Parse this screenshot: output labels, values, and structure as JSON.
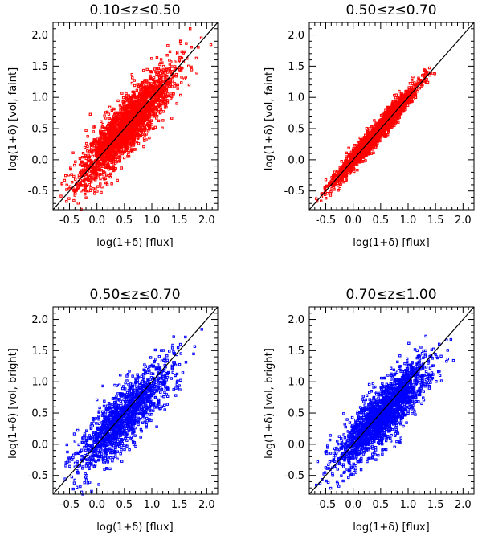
{
  "chart_data": [
    {
      "type": "scatter",
      "title": "0.10≤z≤0.50",
      "xlabel": "log(1+δ) [flux]",
      "ylabel": "log(1+δ) [vol, faint]",
      "xlim": [
        -0.8,
        2.2
      ],
      "ylim": [
        -0.8,
        2.2
      ],
      "xticks": [
        "-0.5",
        "0.0",
        "0.5",
        "1.0",
        "1.5",
        "2.0"
      ],
      "yticks": [
        "-0.5",
        "0.0",
        "0.5",
        "1.0",
        "1.5",
        "2.0"
      ],
      "color": "#ff0000",
      "reference_line": {
        "x": [
          -0.8,
          2.2
        ],
        "y": [
          -0.8,
          2.2
        ]
      },
      "scatter_model": {
        "n": 2400,
        "x_mean": 0.55,
        "x_sd": 0.42,
        "x_min": -0.7,
        "x_max": 2.1,
        "slope": 0.95,
        "intercept": 0.02,
        "y_sd": 0.22,
        "seed": 11
      }
    },
    {
      "type": "scatter",
      "title": "0.50≤z≤0.70",
      "xlabel": "log(1+δ) [flux]",
      "ylabel": "log(1+δ) [vol, faint]",
      "xlim": [
        -0.8,
        2.2
      ],
      "ylim": [
        -0.8,
        2.2
      ],
      "xticks": [
        "-0.5",
        "0.0",
        "0.5",
        "1.0",
        "1.5",
        "2.0"
      ],
      "yticks": [
        "-0.5",
        "0.0",
        "0.5",
        "1.0",
        "1.5",
        "2.0"
      ],
      "color": "#ff0000",
      "reference_line": {
        "x": [
          -0.8,
          2.2
        ],
        "y": [
          -0.8,
          2.2
        ]
      },
      "scatter_model": {
        "n": 2200,
        "x_mean": 0.4,
        "x_sd": 0.36,
        "x_min": -0.7,
        "x_max": 2.0,
        "slope": 1.0,
        "intercept": 0.0,
        "y_sd": 0.08,
        "seed": 23
      }
    },
    {
      "type": "scatter",
      "title": "0.50≤z≤0.70",
      "xlabel": "log(1+δ) [flux]",
      "ylabel": "log(1+δ) [vol, bright]",
      "xlim": [
        -0.8,
        2.2
      ],
      "ylim": [
        -0.8,
        2.2
      ],
      "xticks": [
        "-0.5",
        "0.0",
        "0.5",
        "1.0",
        "1.5",
        "2.0"
      ],
      "yticks": [
        "-0.5",
        "0.0",
        "0.5",
        "1.0",
        "1.5",
        "2.0"
      ],
      "color": "#0000ff",
      "reference_line": {
        "x": [
          -0.8,
          2.2
        ],
        "y": [
          -0.8,
          2.2
        ]
      },
      "scatter_model": {
        "n": 1400,
        "x_mean": 0.5,
        "x_sd": 0.42,
        "x_min": -0.6,
        "x_max": 2.1,
        "slope": 0.82,
        "intercept": 0.03,
        "y_sd": 0.24,
        "seed": 37
      }
    },
    {
      "type": "scatter",
      "title": "0.70≤z≤1.00",
      "xlabel": "log(1+δ) [flux]",
      "ylabel": "log(1+δ) [vol, bright]",
      "xlim": [
        -0.8,
        2.2
      ],
      "ylim": [
        -0.8,
        2.2
      ],
      "xticks": [
        "-0.5",
        "0.0",
        "0.5",
        "1.0",
        "1.5",
        "2.0"
      ],
      "yticks": [
        "-0.5",
        "0.0",
        "0.5",
        "1.0",
        "1.5",
        "2.0"
      ],
      "color": "#0000ff",
      "reference_line": {
        "x": [
          -0.8,
          2.2
        ],
        "y": [
          -0.8,
          2.2
        ]
      },
      "scatter_model": {
        "n": 2000,
        "x_mean": 0.55,
        "x_sd": 0.42,
        "x_min": -0.7,
        "x_max": 2.1,
        "slope": 0.85,
        "intercept": 0.03,
        "y_sd": 0.22,
        "seed": 53
      }
    }
  ]
}
